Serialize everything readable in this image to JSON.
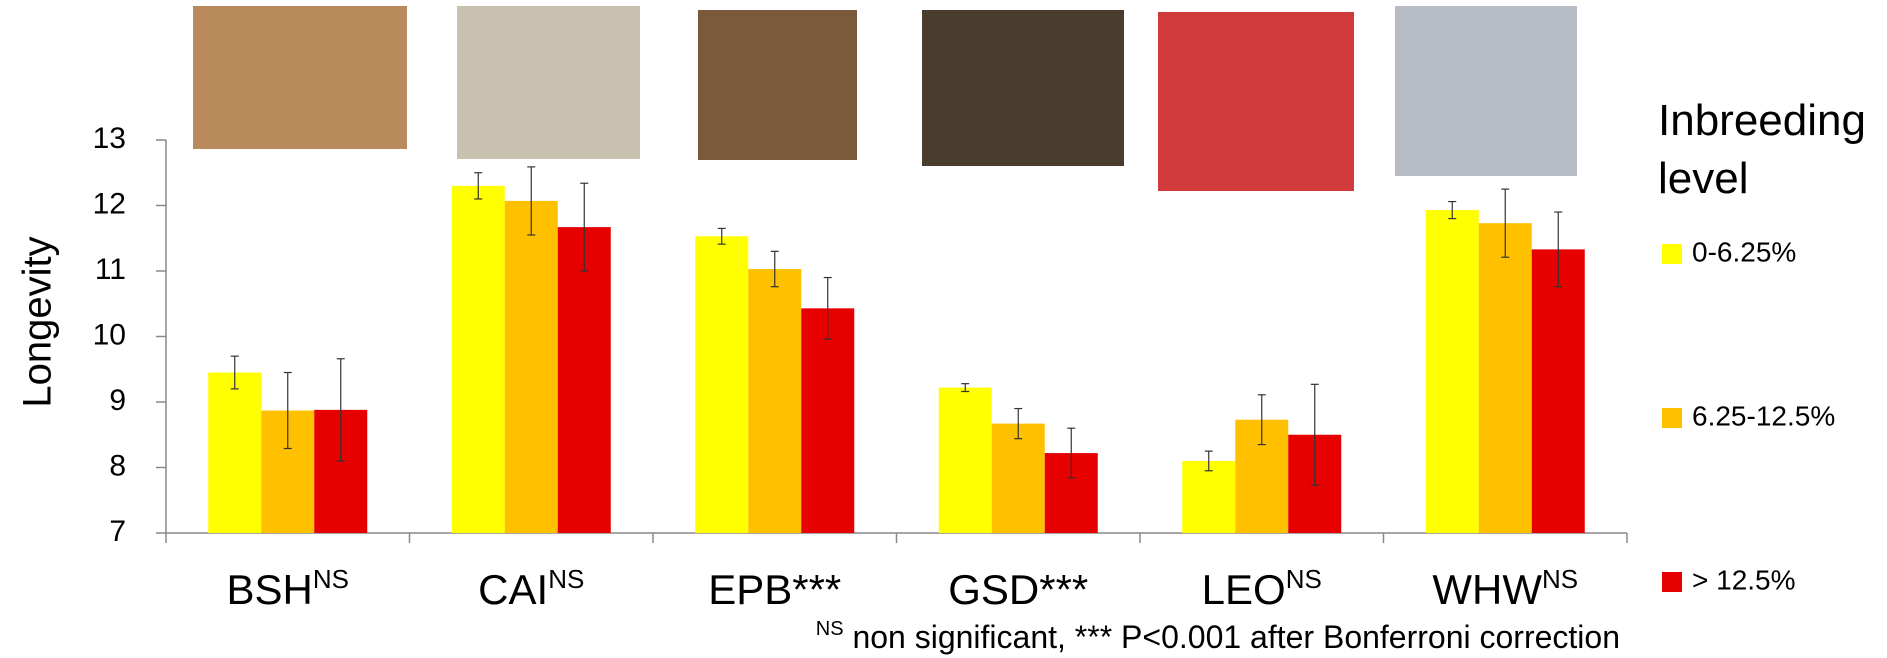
{
  "chart_data": {
    "type": "bar",
    "y_label": "Longevity",
    "categories": [
      "BSH",
      "CAI",
      "EPB***",
      "GSD***",
      "LEO",
      "WHW"
    ],
    "category_superscripts": [
      "NS",
      "NS",
      null,
      null,
      "NS",
      "NS"
    ],
    "legend_title": "Inbreeding level",
    "series": [
      {
        "name": "0-6.25%",
        "color": "#ffff00",
        "values": [
          9.45,
          12.3,
          11.53,
          9.22,
          8.1,
          11.93
        ],
        "errors": [
          0.25,
          0.2,
          0.12,
          0.06,
          0.15,
          0.13
        ]
      },
      {
        "name": "6.25-12.5%",
        "color": "#ffc000",
        "values": [
          8.87,
          12.07,
          11.03,
          8.67,
          8.73,
          11.73
        ],
        "errors": [
          0.58,
          0.52,
          0.27,
          0.23,
          0.38,
          0.52
        ]
      },
      {
        "name": "> 12.5%",
        "color": "#e60000",
        "values": [
          8.88,
          11.67,
          10.43,
          8.22,
          8.5,
          11.33
        ],
        "errors": [
          0.78,
          0.67,
          0.47,
          0.38,
          0.77,
          0.57
        ]
      }
    ],
    "ylim": [
      7,
      13
    ],
    "yticks": [
      7,
      8,
      9,
      10,
      11,
      12,
      13
    ],
    "grid": false,
    "note_marker": "NS",
    "note": " non significant, *** P<0.001 after Bonferroni correction"
  }
}
